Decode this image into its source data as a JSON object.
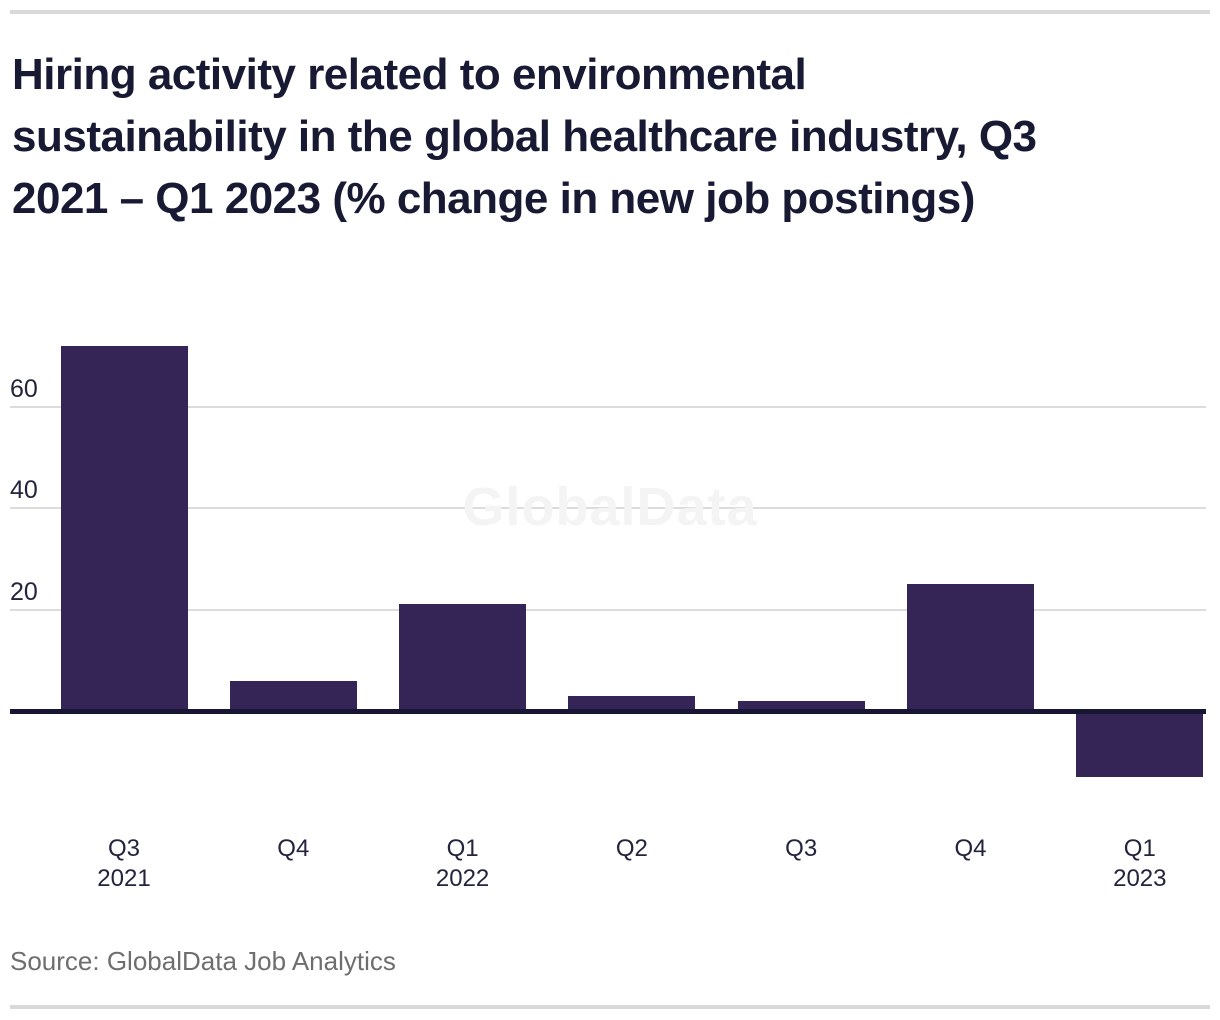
{
  "page": {
    "title_lines": [
      "Hiring activity related to environmental",
      "sustainability in the global healthcare industry, Q3",
      "2021 – Q1 2023 (% change in new job postings)"
    ],
    "source": "Source: GlobalData Job Analytics",
    "watermark": "GlobalData"
  },
  "colors": {
    "background": "#ffffff",
    "bar": "#342556",
    "axis": "#171734",
    "grid": "#dcdcdc",
    "rule": "#d9d9d9",
    "title": "#181933",
    "tick": "#23243d",
    "source": "#6e6e6e",
    "watermark": "#f4f4f4"
  },
  "chart_data": {
    "type": "bar",
    "title": "Hiring activity related to environmental sustainability in the global healthcare industry, Q3 2021 – Q1 2023 (% change in new job postings)",
    "ylabel": "% change in new job postings",
    "xlabel": "",
    "categories": [
      "Q3 2021",
      "Q4 2021",
      "Q1 2022",
      "Q2 2022",
      "Q3 2022",
      "Q4 2022",
      "Q1 2023"
    ],
    "x_tick_labels": [
      [
        "Q3",
        "2021"
      ],
      [
        "Q4"
      ],
      [
        "Q1",
        "2022"
      ],
      [
        "Q2"
      ],
      [
        "Q3"
      ],
      [
        "Q4"
      ],
      [
        "Q1",
        "2023"
      ]
    ],
    "values": [
      72,
      6,
      21,
      3,
      2,
      25,
      -13
    ],
    "yticks": [
      20,
      40,
      60
    ],
    "ylim": [
      -20,
      78
    ],
    "grid": "horizontal-light-gray",
    "legend": "none",
    "bar_color": "#342556",
    "watermark": "GlobalData",
    "source": "Source: GlobalData Job Analytics"
  }
}
